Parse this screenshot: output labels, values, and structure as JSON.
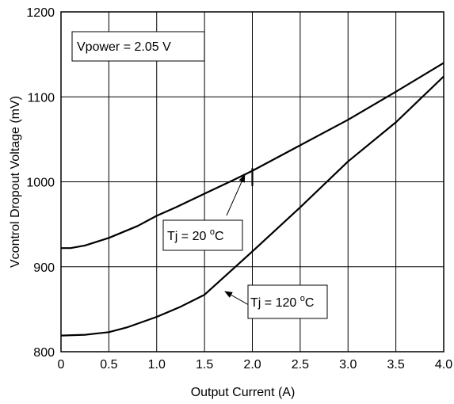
{
  "chart_data": {
    "type": "line",
    "title": "",
    "xlabel": "Output  Current (A)",
    "ylabel": "Vcontrol  Dropout  Voltage (mV)",
    "xlim": [
      0,
      4.0
    ],
    "ylim": [
      800,
      1200
    ],
    "x_ticks": [
      "0",
      "0.5",
      "1.0",
      "1.5",
      "2.0",
      "2.5",
      "3.0",
      "3.5",
      "4.0"
    ],
    "y_ticks": [
      "800",
      "900",
      "1000",
      "1100",
      "1200"
    ],
    "grid": true,
    "legend": "none",
    "series": [
      {
        "name": "Tj = 20 oC",
        "x": [
          0,
          0.1,
          0.25,
          0.5,
          0.8,
          1.0,
          1.2,
          1.5,
          1.8,
          2.0,
          2.5,
          3.0,
          3.5,
          4.0
        ],
        "y": [
          922,
          922,
          925,
          934,
          948,
          960,
          970,
          986,
          1002,
          1013,
          1043,
          1073,
          1106,
          1140
        ]
      },
      {
        "name": "Tj = 120 oC",
        "x": [
          0,
          0.25,
          0.5,
          0.7,
          1.0,
          1.25,
          1.5,
          2.0,
          2.5,
          3.0,
          3.5,
          4.0
        ],
        "y": [
          819,
          820,
          823,
          829,
          841,
          853,
          867,
          918,
          970,
          1024,
          1070,
          1124
        ]
      }
    ],
    "annotations": {
      "vpower": "Vpower = 2.05 V",
      "tj20": {
        "base": "Tj = 20 ",
        "sup": "o",
        "unit": "C"
      },
      "tj120": {
        "base": "Tj = 120 ",
        "sup": "o",
        "unit": "C"
      }
    }
  }
}
